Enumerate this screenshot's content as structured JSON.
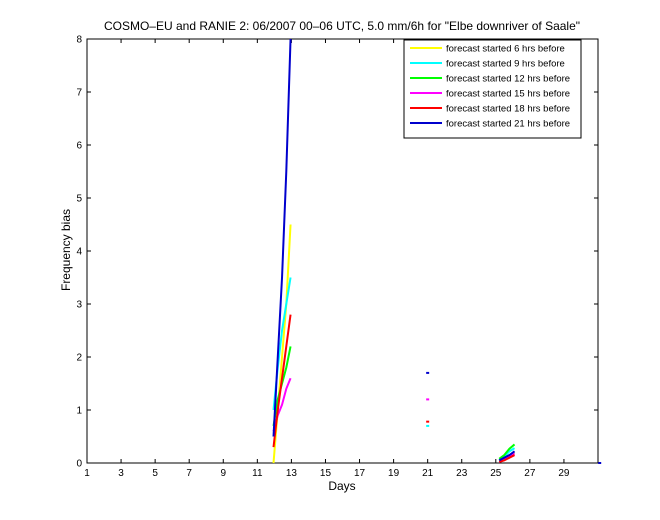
{
  "chart_data": {
    "type": "line",
    "title": "COSMO–EU and RANIE 2: 06/2007 00–06 UTC, 5.0 mm/6h for \"Elbe downriver of Saale\"",
    "xlabel": "Days",
    "ylabel": "Frequency bias",
    "xlim": [
      1,
      31
    ],
    "ylim": [
      0,
      8
    ],
    "xticks": [
      1,
      3,
      5,
      7,
      9,
      11,
      13,
      15,
      17,
      19,
      21,
      23,
      25,
      27,
      29
    ],
    "yticks": [
      0,
      1,
      2,
      3,
      4,
      5,
      6,
      7,
      8
    ],
    "grid": false,
    "legend_position": "top-right",
    "series": [
      {
        "name": "forecast started 6 hrs before",
        "color": "#ffff00",
        "segments": [
          [
            [
              11.95,
              0.0
            ],
            [
              12.2,
              1.0
            ],
            [
              12.45,
              2.0
            ],
            [
              12.7,
              3.0
            ],
            [
              12.95,
              4.5
            ]
          ],
          [
            [
              25.2,
              0.03
            ],
            [
              25.5,
              0.08
            ],
            [
              25.8,
              0.15
            ],
            [
              26.1,
              0.2
            ]
          ]
        ]
      },
      {
        "name": "forecast started 9 hrs before",
        "color": "#00ffff",
        "segments": [
          [
            [
              11.95,
              1.0
            ],
            [
              12.2,
              1.8
            ],
            [
              12.45,
              2.5
            ],
            [
              12.7,
              3.0
            ],
            [
              12.95,
              3.5
            ]
          ],
          [
            [
              21.0,
              0.7
            ]
          ],
          [
            [
              25.2,
              0.05
            ],
            [
              25.5,
              0.12
            ],
            [
              25.8,
              0.22
            ],
            [
              26.1,
              0.28
            ]
          ]
        ]
      },
      {
        "name": "forecast started 12 hrs before",
        "color": "#00ff00",
        "segments": [
          [
            [
              11.95,
              0.7
            ],
            [
              12.2,
              1.2
            ],
            [
              12.45,
              1.5
            ],
            [
              12.7,
              1.8
            ],
            [
              12.95,
              2.2
            ]
          ],
          [
            [
              25.2,
              0.08
            ],
            [
              25.5,
              0.15
            ],
            [
              25.8,
              0.27
            ],
            [
              26.1,
              0.35
            ]
          ]
        ]
      },
      {
        "name": "forecast started 15 hrs before",
        "color": "#ff00ff",
        "segments": [
          [
            [
              11.95,
              0.6
            ],
            [
              12.2,
              0.9
            ],
            [
              12.45,
              1.1
            ],
            [
              12.7,
              1.4
            ],
            [
              12.95,
              1.6
            ]
          ],
          [
            [
              21.0,
              1.2
            ]
          ],
          [
            [
              25.2,
              0.02
            ],
            [
              25.5,
              0.06
            ],
            [
              25.8,
              0.12
            ],
            [
              26.1,
              0.18
            ]
          ]
        ]
      },
      {
        "name": "forecast started 18 hrs before",
        "color": "#ff0000",
        "segments": [
          [
            [
              11.95,
              0.3
            ],
            [
              12.2,
              1.0
            ],
            [
              12.45,
              1.6
            ],
            [
              12.7,
              2.2
            ],
            [
              12.95,
              2.8
            ]
          ],
          [
            [
              21.0,
              0.78
            ]
          ],
          [
            [
              25.2,
              0.02
            ],
            [
              25.5,
              0.05
            ],
            [
              25.8,
              0.1
            ],
            [
              26.1,
              0.15
            ]
          ]
        ]
      },
      {
        "name": "forecast started 21 hrs before",
        "color": "#0000cd",
        "segments": [
          [
            [
              11.95,
              0.5
            ],
            [
              12.2,
              2.0
            ],
            [
              12.45,
              3.5
            ],
            [
              12.7,
              5.5
            ],
            [
              12.95,
              8.0
            ]
          ],
          [
            [
              21.0,
              1.7
            ]
          ],
          [
            [
              25.2,
              0.05
            ],
            [
              25.5,
              0.1
            ],
            [
              25.8,
              0.15
            ],
            [
              26.1,
              0.22
            ]
          ],
          [
            [
              31.1,
              0.0
            ]
          ]
        ]
      }
    ]
  }
}
